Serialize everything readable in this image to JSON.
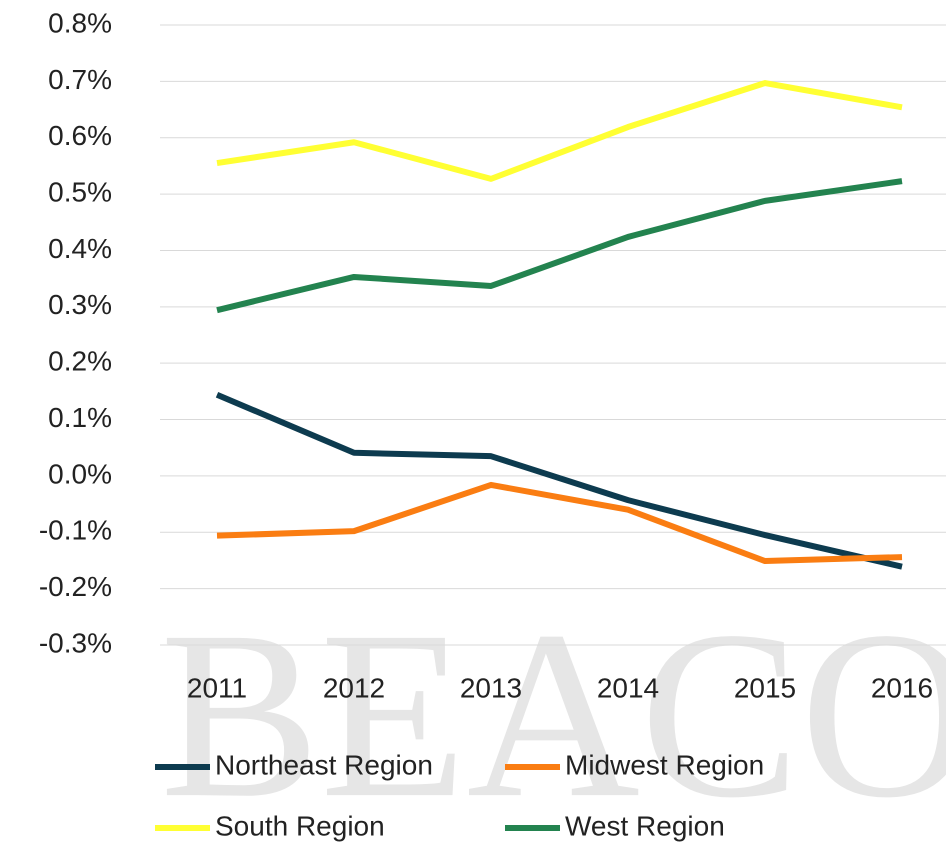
{
  "watermark": "BEACON",
  "chart_data": {
    "type": "line",
    "categories": [
      "2011",
      "2012",
      "2013",
      "2014",
      "2015",
      "2016"
    ],
    "series": [
      {
        "name": "Northeast Region",
        "color": "#0d3b4f",
        "values": [
          0.144,
          0.041,
          0.035,
          -0.043,
          -0.105,
          -0.161
        ]
      },
      {
        "name": "Midwest Region",
        "color": "#fa7d12",
        "values": [
          -0.106,
          -0.098,
          -0.016,
          -0.06,
          -0.151,
          -0.144
        ]
      },
      {
        "name": "South Region",
        "color": "#ffff33",
        "values": [
          0.555,
          0.592,
          0.527,
          0.619,
          0.697,
          0.654
        ]
      },
      {
        "name": "West Region",
        "color": "#23834f",
        "values": [
          0.294,
          0.353,
          0.337,
          0.424,
          0.488,
          0.523
        ]
      }
    ],
    "ylim": [
      -0.3,
      0.8
    ],
    "yticks": [
      {
        "value": -0.3,
        "label": "-0.3%"
      },
      {
        "value": -0.2,
        "label": "-0.2%"
      },
      {
        "value": -0.1,
        "label": "-0.1%"
      },
      {
        "value": 0,
        "label": "0.0%"
      },
      {
        "value": 0.1,
        "label": "0.1%"
      },
      {
        "value": 0.2,
        "label": "0.2%"
      },
      {
        "value": 0.3,
        "label": "0.3%"
      },
      {
        "value": 0.4,
        "label": "0.4%"
      },
      {
        "value": 0.5,
        "label": "0.5%"
      },
      {
        "value": 0.6,
        "label": "0.6%"
      },
      {
        "value": 0.7,
        "label": "0.7%"
      },
      {
        "value": 0.8,
        "label": "0.8%"
      }
    ],
    "grid": true,
    "legend": "bottom"
  }
}
